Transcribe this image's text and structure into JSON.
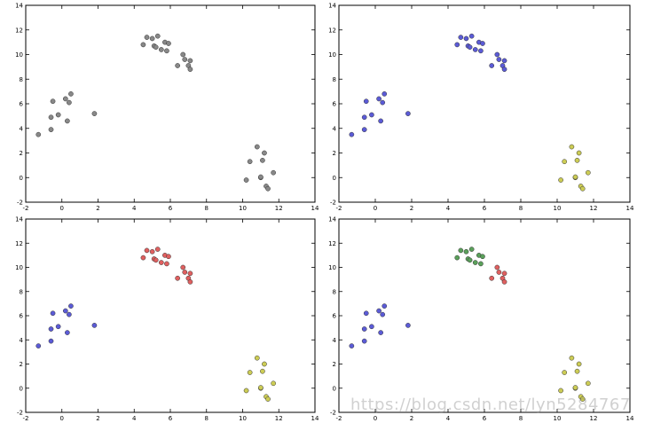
{
  "chart_data": [
    {
      "type": "scatter",
      "xlim": [
        -2,
        14
      ],
      "ylim": [
        -2,
        14
      ],
      "xticks": [
        "-2",
        "0",
        "2",
        "4",
        "6",
        "8",
        "10",
        "12",
        "14"
      ],
      "yticks": [
        "-2",
        "0",
        "2",
        "4",
        "6",
        "8",
        "10",
        "12",
        "14"
      ],
      "grid": false,
      "series": [
        {
          "color": "#888888",
          "points": [
            [
              -1.3,
              3.5
            ],
            [
              -0.6,
              3.9
            ],
            [
              -0.6,
              4.9
            ],
            [
              -0.2,
              5.1
            ],
            [
              0.3,
              4.6
            ],
            [
              -0.5,
              6.2
            ],
            [
              0.2,
              6.4
            ],
            [
              0.4,
              6.1
            ],
            [
              0.5,
              6.8
            ],
            [
              1.8,
              5.2
            ],
            [
              4.5,
              10.8
            ],
            [
              4.7,
              11.4
            ],
            [
              5.0,
              11.3
            ],
            [
              5.1,
              10.7
            ],
            [
              5.3,
              11.5
            ],
            [
              5.2,
              10.6
            ],
            [
              5.5,
              10.4
            ],
            [
              5.7,
              11.0
            ],
            [
              5.9,
              10.9
            ],
            [
              5.8,
              10.3
            ],
            [
              6.4,
              9.1
            ],
            [
              6.7,
              10.0
            ],
            [
              6.8,
              9.6
            ],
            [
              7.0,
              9.1
            ],
            [
              7.1,
              9.5
            ],
            [
              7.1,
              8.8
            ],
            [
              10.2,
              -0.2
            ],
            [
              10.4,
              1.3
            ],
            [
              10.8,
              2.5
            ],
            [
              11.0,
              0.0
            ],
            [
              11.1,
              1.4
            ],
            [
              11.2,
              2.0
            ],
            [
              11.3,
              -0.7
            ],
            [
              11.4,
              -0.9
            ],
            [
              11.7,
              0.4
            ],
            [
              11.0,
              0.05
            ]
          ]
        }
      ]
    },
    {
      "type": "scatter",
      "xlim": [
        -2,
        14
      ],
      "ylim": [
        -2,
        14
      ],
      "xticks": [
        "-2",
        "0",
        "2",
        "4",
        "6",
        "8",
        "10",
        "12",
        "14"
      ],
      "yticks": [
        "-2",
        "0",
        "2",
        "4",
        "6",
        "8",
        "10",
        "12",
        "14"
      ],
      "grid": false,
      "series": [
        {
          "color": "#5b5bd6",
          "points": [
            [
              -1.3,
              3.5
            ],
            [
              -0.6,
              3.9
            ],
            [
              -0.6,
              4.9
            ],
            [
              -0.2,
              5.1
            ],
            [
              0.3,
              4.6
            ],
            [
              -0.5,
              6.2
            ],
            [
              0.2,
              6.4
            ],
            [
              0.4,
              6.1
            ],
            [
              0.5,
              6.8
            ],
            [
              1.8,
              5.2
            ],
            [
              4.5,
              10.8
            ],
            [
              4.7,
              11.4
            ],
            [
              5.0,
              11.3
            ],
            [
              5.1,
              10.7
            ],
            [
              5.3,
              11.5
            ],
            [
              5.2,
              10.6
            ],
            [
              5.5,
              10.4
            ],
            [
              5.7,
              11.0
            ],
            [
              5.9,
              10.9
            ],
            [
              5.8,
              10.3
            ],
            [
              6.4,
              9.1
            ],
            [
              6.7,
              10.0
            ],
            [
              6.8,
              9.6
            ],
            [
              7.0,
              9.1
            ],
            [
              7.1,
              9.5
            ],
            [
              7.1,
              8.8
            ]
          ]
        },
        {
          "color": "#cccc55",
          "points": [
            [
              10.2,
              -0.2
            ],
            [
              10.4,
              1.3
            ],
            [
              10.8,
              2.5
            ],
            [
              11.0,
              0.0
            ],
            [
              11.1,
              1.4
            ],
            [
              11.2,
              2.0
            ],
            [
              11.3,
              -0.7
            ],
            [
              11.4,
              -0.9
            ],
            [
              11.7,
              0.4
            ],
            [
              11.0,
              0.05
            ]
          ]
        }
      ]
    },
    {
      "type": "scatter",
      "xlim": [
        -2,
        14
      ],
      "ylim": [
        -2,
        14
      ],
      "xticks": [
        "-2",
        "0",
        "2",
        "4",
        "6",
        "8",
        "10",
        "12",
        "14"
      ],
      "yticks": [
        "-2",
        "0",
        "2",
        "4",
        "6",
        "8",
        "10",
        "12",
        "14"
      ],
      "grid": false,
      "series": [
        {
          "color": "#5b5bd6",
          "points": [
            [
              -1.3,
              3.5
            ],
            [
              -0.6,
              3.9
            ],
            [
              -0.6,
              4.9
            ],
            [
              -0.2,
              5.1
            ],
            [
              0.3,
              4.6
            ],
            [
              -0.5,
              6.2
            ],
            [
              0.2,
              6.4
            ],
            [
              0.4,
              6.1
            ],
            [
              0.5,
              6.8
            ],
            [
              1.8,
              5.2
            ]
          ]
        },
        {
          "color": "#e06060",
          "points": [
            [
              4.5,
              10.8
            ],
            [
              4.7,
              11.4
            ],
            [
              5.0,
              11.3
            ],
            [
              5.1,
              10.7
            ],
            [
              5.3,
              11.5
            ],
            [
              5.2,
              10.6
            ],
            [
              5.5,
              10.4
            ],
            [
              5.7,
              11.0
            ],
            [
              5.9,
              10.9
            ],
            [
              5.8,
              10.3
            ],
            [
              6.4,
              9.1
            ],
            [
              6.7,
              10.0
            ],
            [
              6.8,
              9.6
            ],
            [
              7.0,
              9.1
            ],
            [
              7.1,
              9.5
            ],
            [
              7.1,
              8.8
            ]
          ]
        },
        {
          "color": "#cccc55",
          "points": [
            [
              10.2,
              -0.2
            ],
            [
              10.4,
              1.3
            ],
            [
              10.8,
              2.5
            ],
            [
              11.0,
              0.0
            ],
            [
              11.1,
              1.4
            ],
            [
              11.2,
              2.0
            ],
            [
              11.3,
              -0.7
            ],
            [
              11.4,
              -0.9
            ],
            [
              11.7,
              0.4
            ],
            [
              11.0,
              0.05
            ]
          ]
        }
      ]
    },
    {
      "type": "scatter",
      "xlim": [
        -2,
        14
      ],
      "ylim": [
        -2,
        14
      ],
      "xticks": [
        "-2",
        "0",
        "2",
        "4",
        "6",
        "8",
        "10",
        "12",
        "14"
      ],
      "yticks": [
        "-2",
        "0",
        "2",
        "4",
        "6",
        "8",
        "10",
        "12",
        "14"
      ],
      "grid": false,
      "series": [
        {
          "color": "#5b5bd6",
          "points": [
            [
              -1.3,
              3.5
            ],
            [
              -0.6,
              3.9
            ],
            [
              -0.6,
              4.9
            ],
            [
              -0.2,
              5.1
            ],
            [
              0.3,
              4.6
            ],
            [
              -0.5,
              6.2
            ],
            [
              0.2,
              6.4
            ],
            [
              0.4,
              6.1
            ],
            [
              0.5,
              6.8
            ],
            [
              1.8,
              5.2
            ]
          ]
        },
        {
          "color": "#5aa05a",
          "points": [
            [
              4.5,
              10.8
            ],
            [
              4.7,
              11.4
            ],
            [
              5.0,
              11.3
            ],
            [
              5.1,
              10.7
            ],
            [
              5.3,
              11.5
            ],
            [
              5.2,
              10.6
            ],
            [
              5.5,
              10.4
            ],
            [
              5.7,
              11.0
            ],
            [
              5.9,
              10.9
            ],
            [
              5.8,
              10.3
            ]
          ]
        },
        {
          "color": "#e06060",
          "points": [
            [
              6.4,
              9.1
            ],
            [
              6.7,
              10.0
            ],
            [
              6.8,
              9.6
            ],
            [
              7.0,
              9.1
            ],
            [
              7.1,
              9.5
            ],
            [
              7.1,
              8.8
            ]
          ]
        },
        {
          "color": "#cccc55",
          "points": [
            [
              10.2,
              -0.2
            ],
            [
              10.4,
              1.3
            ],
            [
              10.8,
              2.5
            ],
            [
              11.0,
              0.0
            ],
            [
              11.1,
              1.4
            ],
            [
              11.2,
              2.0
            ],
            [
              11.3,
              -0.7
            ],
            [
              11.4,
              -0.9
            ],
            [
              11.7,
              0.4
            ],
            [
              11.0,
              0.05
            ]
          ]
        }
      ]
    }
  ],
  "watermark": "https://blog.csdn.net/lyn5284767"
}
